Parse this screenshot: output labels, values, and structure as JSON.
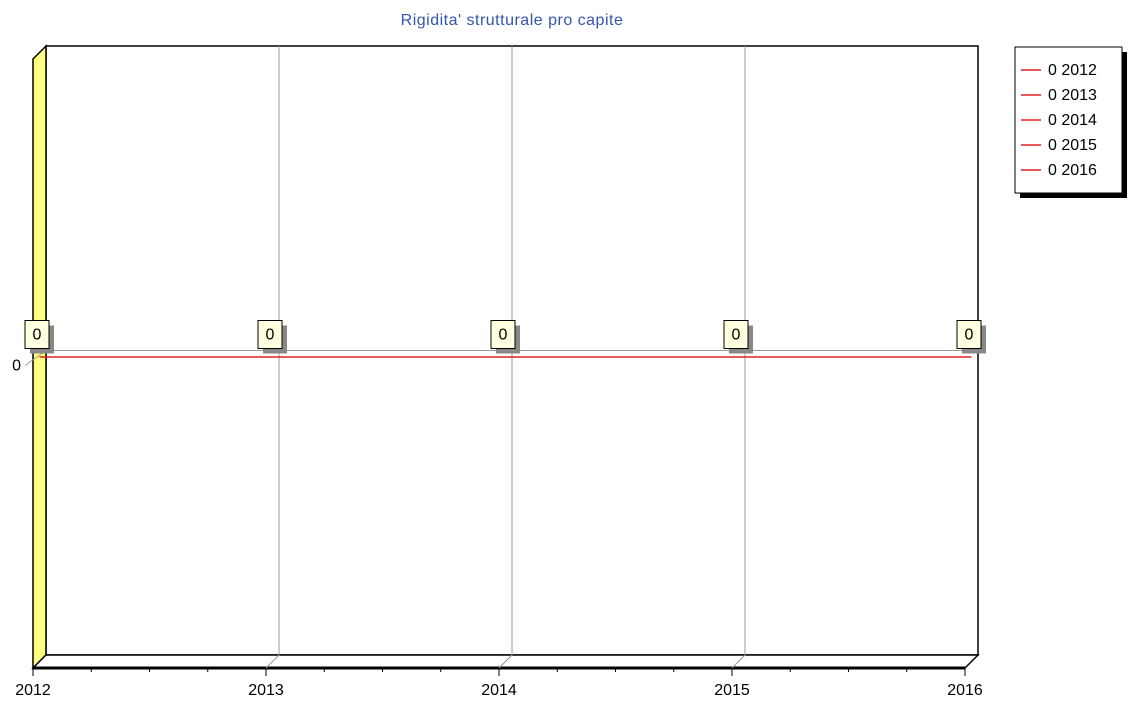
{
  "chart_data": {
    "type": "line",
    "title": "Rigidita' strutturale pro capite",
    "categories": [
      "2012",
      "2013",
      "2014",
      "2015",
      "2016"
    ],
    "series": [
      {
        "name": "0",
        "color": "#e02020",
        "values": [
          0,
          0,
          0,
          0,
          0
        ]
      }
    ],
    "legend": [
      "0 2012",
      "0 2013",
      "0 2014",
      "0 2015",
      "0 2016"
    ],
    "ylim": [
      -1,
      1
    ],
    "yticks": [
      0
    ],
    "grid": true,
    "legend_position": "top-right",
    "wall_color": "#ffff80"
  }
}
